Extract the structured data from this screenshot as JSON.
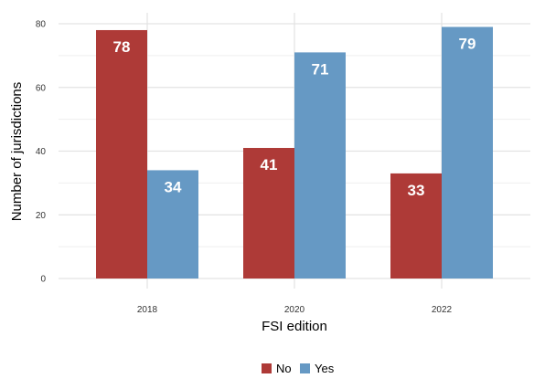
{
  "chart_data": {
    "type": "bar",
    "categories": [
      "2018",
      "2020",
      "2022"
    ],
    "series": [
      {
        "name": "No",
        "values": [
          78,
          41,
          33
        ],
        "color": "#AE3A37"
      },
      {
        "name": "Yes",
        "values": [
          34,
          71,
          79
        ],
        "color": "#6699C4"
      }
    ],
    "xlabel": "FSI edition",
    "ylabel": "Number of jurisdictions",
    "ylim": [
      0,
      80
    ],
    "yticks": [
      0,
      20,
      40,
      60,
      80
    ],
    "grid": true,
    "legend_position": "bottom",
    "data_labels": true
  }
}
